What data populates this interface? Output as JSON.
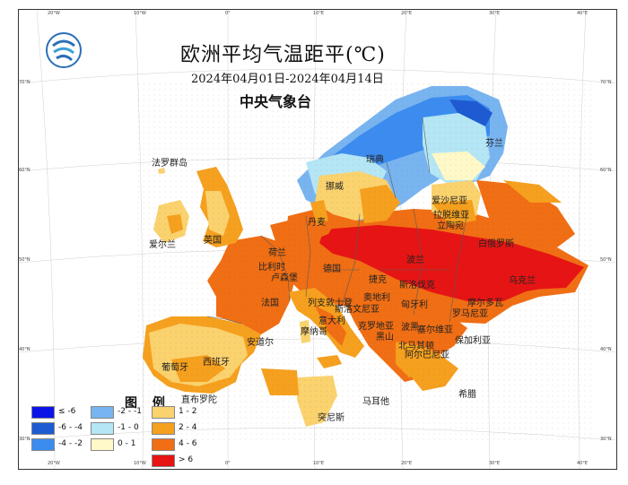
{
  "header": {
    "title": "欧洲平均气温距平(℃)",
    "date_range": "2024年04月01日-2024年04月14日",
    "agency": "中央气象台"
  },
  "top_ticks": [
    "20°W",
    "10°W",
    "0°",
    "10°E",
    "20°E",
    "30°E",
    "40°E"
  ],
  "bottom_ticks": [
    "20°W",
    "10°W",
    "0°",
    "10°E",
    "20°E",
    "30°E",
    "40°E"
  ],
  "left_ticks": [
    "70°N",
    "60°N",
    "50°N",
    "40°N",
    "30°N"
  ],
  "right_ticks": [
    "70°N",
    "60°N",
    "50°N",
    "40°N",
    "30°N"
  ],
  "legend": {
    "title": "图 例",
    "items": [
      {
        "label": "≤ -6",
        "color": "#0a14e6"
      },
      {
        "label": "-6 - -4",
        "color": "#1e5ad2"
      },
      {
        "label": "-4 - -2",
        "color": "#3c8cf0"
      },
      {
        "label": "-2 - -1",
        "color": "#78b4f0"
      },
      {
        "label": "-1 - 0",
        "color": "#b4e6f5"
      },
      {
        "label": "0 - 1",
        "color": "#fff8c8"
      },
      {
        "label": "1 - 2",
        "color": "#fad26e"
      },
      {
        "label": "2 - 4",
        "color": "#f5a01e"
      },
      {
        "label": "4 - 6",
        "color": "#f06e14"
      },
      {
        "label": "> 6",
        "color": "#e61414"
      }
    ]
  },
  "countries": [
    {
      "name": "芬兰"
    },
    {
      "name": "瑞典"
    },
    {
      "name": "挪威"
    },
    {
      "name": "法罗群岛"
    },
    {
      "name": "爱沙尼亚"
    },
    {
      "name": "拉脱维亚"
    },
    {
      "name": "立陶宛"
    },
    {
      "name": "丹麦"
    },
    {
      "name": "白俄罗斯"
    },
    {
      "name": "爱尔兰"
    },
    {
      "name": "英国"
    },
    {
      "name": "荷兰"
    },
    {
      "name": "比利时"
    },
    {
      "name": "卢森堡"
    },
    {
      "name": "德国"
    },
    {
      "name": "波兰"
    },
    {
      "name": "捷克"
    },
    {
      "name": "斯洛伐克"
    },
    {
      "name": "乌克兰"
    },
    {
      "name": "摩尔多瓦"
    },
    {
      "name": "法国"
    },
    {
      "name": "列支敦士登"
    },
    {
      "name": "奥地利"
    },
    {
      "name": "匈牙利"
    },
    {
      "name": "罗马尼亚"
    },
    {
      "name": "斯洛文尼亚"
    },
    {
      "name": "克罗地亚"
    },
    {
      "name": "塞尔维亚"
    },
    {
      "name": "摩纳哥"
    },
    {
      "name": "安道尔"
    },
    {
      "name": "意大利"
    },
    {
      "name": "波黑"
    },
    {
      "name": "黑山"
    },
    {
      "name": "北马其顿"
    },
    {
      "name": "保加利亚"
    },
    {
      "name": "阿尔巴尼亚"
    },
    {
      "name": "葡萄牙"
    },
    {
      "name": "西班牙"
    },
    {
      "name": "直布罗陀"
    },
    {
      "name": "马耳他"
    },
    {
      "name": "希腊"
    },
    {
      "name": "突尼斯"
    }
  ]
}
